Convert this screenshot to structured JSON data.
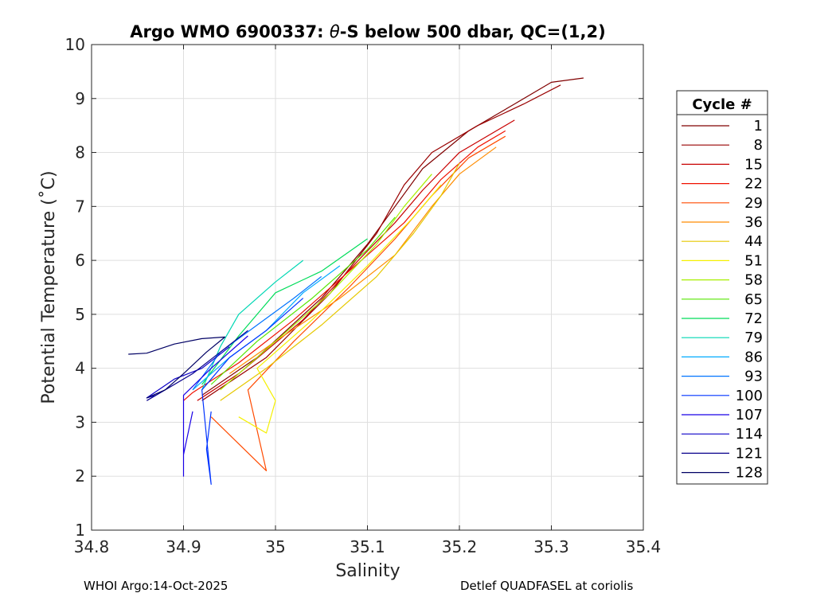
{
  "chart_data": {
    "type": "line",
    "title_parts": [
      "Argo WMO 6900337: ",
      "θ",
      "-S below 500 dbar,  QC=(1,2)"
    ],
    "xlabel": "Salinity",
    "ylabel": "Potential Temperature (˚C)",
    "xlim": [
      34.8,
      35.4
    ],
    "ylim": [
      1,
      10
    ],
    "xticks": [
      34.8,
      34.9,
      35.0,
      35.1,
      35.2,
      35.3,
      35.4
    ],
    "xtick_labels": [
      "34.8",
      "34.9",
      "35",
      "35.1",
      "35.2",
      "35.3",
      "35.4"
    ],
    "yticks": [
      1,
      2,
      3,
      4,
      5,
      6,
      7,
      8,
      9,
      10
    ],
    "ytick_labels": [
      "1",
      "2",
      "3",
      "4",
      "5",
      "6",
      "7",
      "8",
      "9",
      "10"
    ],
    "grid": true,
    "legend": {
      "title": "Cycle #",
      "placement": "right outside",
      "entries": [
        "1",
        "8",
        "15",
        "22",
        "29",
        "36",
        "44",
        "51",
        "58",
        "65",
        "72",
        "79",
        "86",
        "93",
        "100",
        "107",
        "114",
        "121",
        "128"
      ]
    },
    "series": [
      {
        "name": "1",
        "color": "#800000",
        "points": [
          [
            34.92,
            3.5
          ],
          [
            34.98,
            4.2
          ],
          [
            35.05,
            5.3
          ],
          [
            35.1,
            6.3
          ],
          [
            35.13,
            7.0
          ],
          [
            35.16,
            7.7
          ],
          [
            35.21,
            8.4
          ],
          [
            35.26,
            8.9
          ],
          [
            35.3,
            9.3
          ],
          [
            35.335,
            9.38
          ]
        ]
      },
      {
        "name": "8",
        "color": "#990000",
        "points": [
          [
            34.92,
            3.4
          ],
          [
            34.99,
            4.2
          ],
          [
            35.06,
            5.4
          ],
          [
            35.11,
            6.5
          ],
          [
            35.14,
            7.4
          ],
          [
            35.17,
            8.0
          ],
          [
            35.22,
            8.5
          ],
          [
            35.27,
            8.9
          ],
          [
            35.31,
            9.25
          ]
        ]
      },
      {
        "name": "15",
        "color": "#c80000",
        "points": [
          [
            34.915,
            3.4
          ],
          [
            34.96,
            3.9
          ],
          [
            35.03,
            4.9
          ],
          [
            35.09,
            6.0
          ],
          [
            35.13,
            6.7
          ],
          [
            35.16,
            7.3
          ],
          [
            35.2,
            8.0
          ],
          [
            35.26,
            8.6
          ]
        ]
      },
      {
        "name": "22",
        "color": "#f01000",
        "points": [
          [
            34.9,
            3.4
          ],
          [
            34.91,
            3.55
          ],
          [
            34.96,
            4.1
          ],
          [
            35.02,
            4.9
          ],
          [
            35.08,
            5.8
          ],
          [
            35.14,
            6.7
          ],
          [
            35.18,
            7.5
          ],
          [
            35.22,
            8.1
          ],
          [
            35.25,
            8.4
          ]
        ]
      },
      {
        "name": "29",
        "color": "#ff4a00",
        "points": [
          [
            34.93,
            3.1
          ],
          [
            34.96,
            2.6
          ],
          [
            34.99,
            2.1
          ],
          [
            34.97,
            3.6
          ],
          [
            35.02,
            4.5
          ],
          [
            35.08,
            5.5
          ],
          [
            35.13,
            6.4
          ],
          [
            35.17,
            7.2
          ],
          [
            35.21,
            7.9
          ],
          [
            35.25,
            8.3
          ]
        ]
      },
      {
        "name": "36",
        "color": "#ff8c00",
        "points": [
          [
            34.95,
            3.9
          ],
          [
            35.0,
            4.5
          ],
          [
            35.07,
            5.3
          ],
          [
            35.13,
            6.1
          ],
          [
            35.17,
            7.0
          ],
          [
            35.2,
            7.6
          ],
          [
            35.24,
            8.1
          ]
        ]
      },
      {
        "name": "44",
        "color": "#e6c800",
        "points": [
          [
            34.94,
            3.4
          ],
          [
            34.99,
            4.0
          ],
          [
            35.05,
            4.8
          ],
          [
            35.11,
            5.7
          ],
          [
            35.15,
            6.5
          ],
          [
            35.18,
            7.2
          ],
          [
            35.2,
            7.8
          ]
        ]
      },
      {
        "name": "51",
        "color": "#f5f000",
        "points": [
          [
            34.96,
            3.1
          ],
          [
            34.99,
            2.8
          ],
          [
            35.0,
            3.4
          ],
          [
            34.98,
            4.0
          ],
          [
            35.04,
            4.9
          ],
          [
            35.1,
            5.9
          ],
          [
            35.15,
            6.8
          ],
          [
            35.18,
            7.4
          ]
        ]
      },
      {
        "name": "58",
        "color": "#a8f000",
        "points": [
          [
            34.94,
            3.6
          ],
          [
            35.0,
            4.5
          ],
          [
            35.06,
            5.4
          ],
          [
            35.11,
            6.3
          ],
          [
            35.14,
            7.0
          ],
          [
            35.17,
            7.6
          ]
        ]
      },
      {
        "name": "65",
        "color": "#55e600",
        "points": [
          [
            34.93,
            3.7
          ],
          [
            34.98,
            4.5
          ],
          [
            35.04,
            5.3
          ],
          [
            35.1,
            6.2
          ],
          [
            35.13,
            6.8
          ]
        ]
      },
      {
        "name": "72",
        "color": "#00dc5a",
        "points": [
          [
            34.92,
            3.7
          ],
          [
            34.96,
            4.6
          ],
          [
            35.0,
            5.4
          ],
          [
            35.05,
            5.8
          ],
          [
            35.1,
            6.4
          ]
        ]
      },
      {
        "name": "79",
        "color": "#00d7b4",
        "points": [
          [
            34.92,
            3.6
          ],
          [
            34.94,
            4.4
          ],
          [
            34.96,
            5.0
          ],
          [
            35.0,
            5.6
          ],
          [
            35.03,
            6.0
          ]
        ]
      },
      {
        "name": "86",
        "color": "#00aaff",
        "points": [
          [
            34.91,
            3.6
          ],
          [
            34.95,
            4.2
          ],
          [
            34.99,
            4.7
          ],
          [
            35.03,
            5.4
          ],
          [
            35.07,
            5.9
          ]
        ]
      },
      {
        "name": "93",
        "color": "#0073ff",
        "points": [
          [
            34.91,
            3.6
          ],
          [
            34.94,
            4.3
          ],
          [
            34.98,
            4.8
          ],
          [
            35.02,
            5.3
          ],
          [
            35.05,
            5.7
          ]
        ]
      },
      {
        "name": "100",
        "color": "#0033ff",
        "points": [
          [
            34.93,
            3.2
          ],
          [
            34.925,
            2.5
          ],
          [
            34.93,
            1.85
          ],
          [
            34.92,
            3.6
          ],
          [
            34.95,
            4.2
          ],
          [
            34.99,
            4.7
          ],
          [
            35.03,
            5.3
          ]
        ]
      },
      {
        "name": "107",
        "color": "#1900e6",
        "points": [
          [
            34.91,
            3.2
          ],
          [
            34.9,
            2.4
          ],
          [
            34.9,
            2.0
          ],
          [
            34.9,
            3.5
          ],
          [
            34.93,
            4.0
          ],
          [
            34.97,
            4.6
          ]
        ]
      },
      {
        "name": "114",
        "color": "#0d00c8",
        "points": [
          [
            34.87,
            3.5
          ],
          [
            34.86,
            3.45
          ],
          [
            34.89,
            3.8
          ],
          [
            34.92,
            4.0
          ],
          [
            34.95,
            4.4
          ]
        ]
      },
      {
        "name": "121",
        "color": "#08008c",
        "points": [
          [
            34.86,
            3.4
          ],
          [
            34.88,
            3.6
          ],
          [
            34.91,
            3.9
          ],
          [
            34.94,
            4.3
          ],
          [
            34.97,
            4.7
          ]
        ]
      },
      {
        "name": "128",
        "color": "#000064",
        "points": [
          [
            34.84,
            4.26
          ],
          [
            34.86,
            4.28
          ],
          [
            34.89,
            4.45
          ],
          [
            34.92,
            4.55
          ],
          [
            34.945,
            4.58
          ],
          [
            34.925,
            4.3
          ],
          [
            34.9,
            3.9
          ],
          [
            34.88,
            3.6
          ],
          [
            34.86,
            3.45
          ]
        ]
      }
    ]
  },
  "footer": {
    "left": "WHOI Argo:14-Oct-2025",
    "right": "Detlef QUADFASEL at coriolis"
  }
}
